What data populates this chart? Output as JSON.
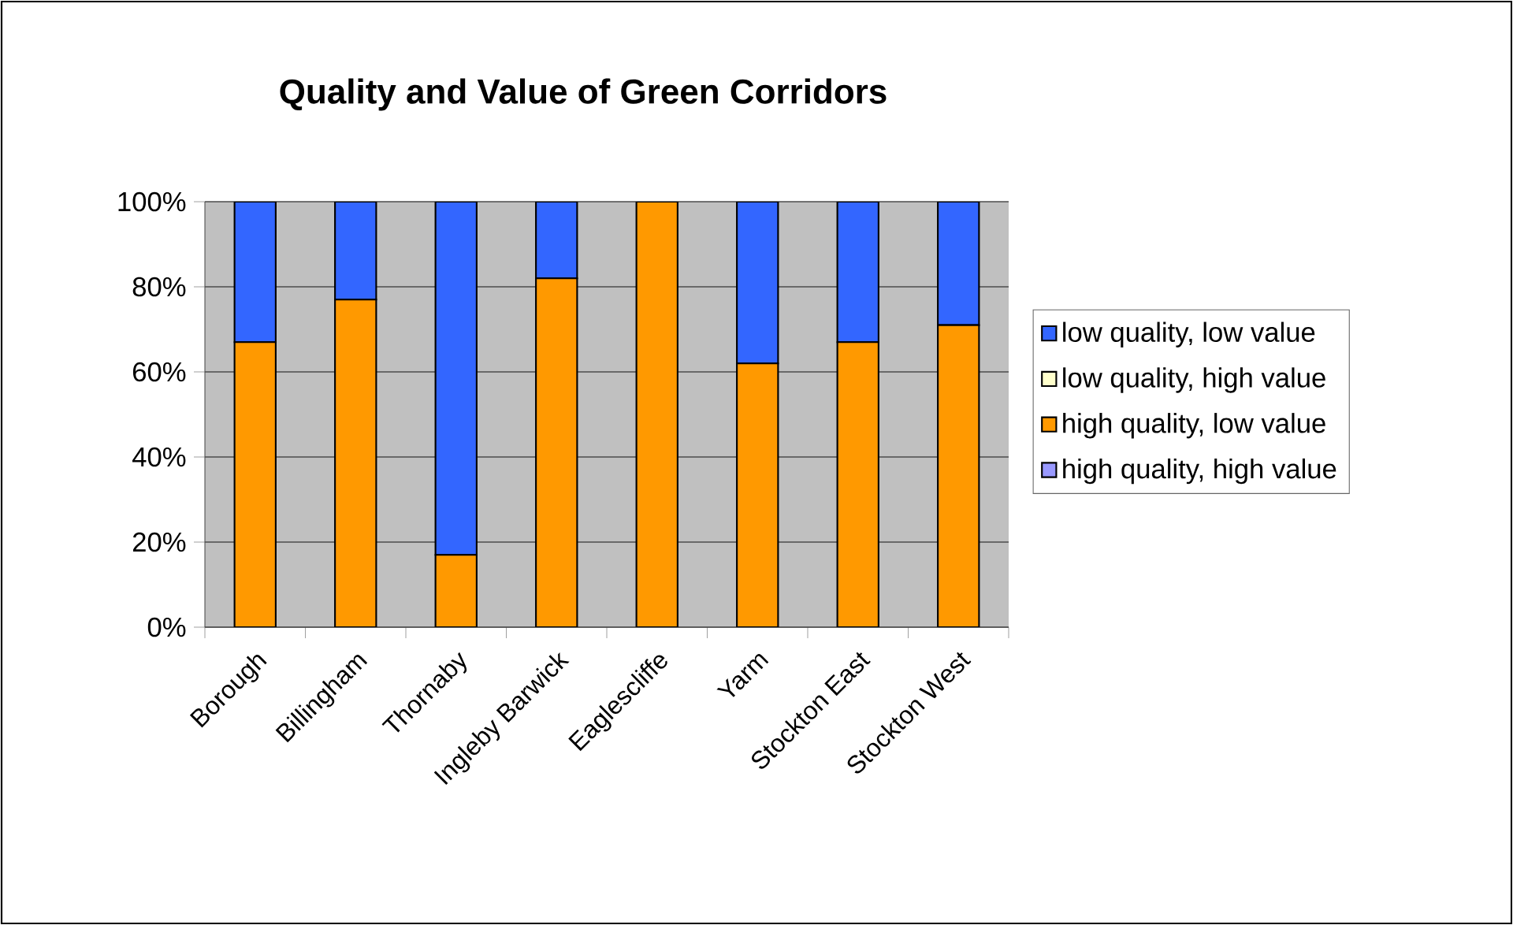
{
  "chart_data": {
    "type": "bar",
    "title": "Quality and Value of Green Corridors",
    "stacked": true,
    "categories": [
      "Borough",
      "Billingham",
      "Thornaby",
      "Ingleby Barwick",
      "Eaglescliffe",
      "Yarm",
      "Stockton East",
      "Stockton West"
    ],
    "series": [
      {
        "name": "high quality, high value",
        "color": "#9999ff",
        "values": [
          0,
          0,
          0,
          0,
          0,
          0,
          0,
          0
        ]
      },
      {
        "name": "high quality, low value",
        "color": "#ff9900",
        "values": [
          67,
          77,
          17,
          82,
          100,
          62,
          67,
          71
        ]
      },
      {
        "name": "low quality, high value",
        "color": "#ffffcc",
        "values": [
          0,
          0,
          0,
          0,
          0,
          0,
          0,
          0
        ]
      },
      {
        "name": "low quality, low value",
        "color": "#3366ff",
        "values": [
          33,
          23,
          83,
          18,
          0,
          38,
          33,
          29
        ]
      }
    ],
    "ylim": [
      0,
      100
    ],
    "yticks": [
      {
        "value": 0,
        "label": "0%"
      },
      {
        "value": 20,
        "label": "20%"
      },
      {
        "value": 40,
        "label": "40%"
      },
      {
        "value": 60,
        "label": "60%"
      },
      {
        "value": 80,
        "label": "80%"
      },
      {
        "value": 100,
        "label": "100%"
      }
    ],
    "grid": "y",
    "legend": "right"
  }
}
